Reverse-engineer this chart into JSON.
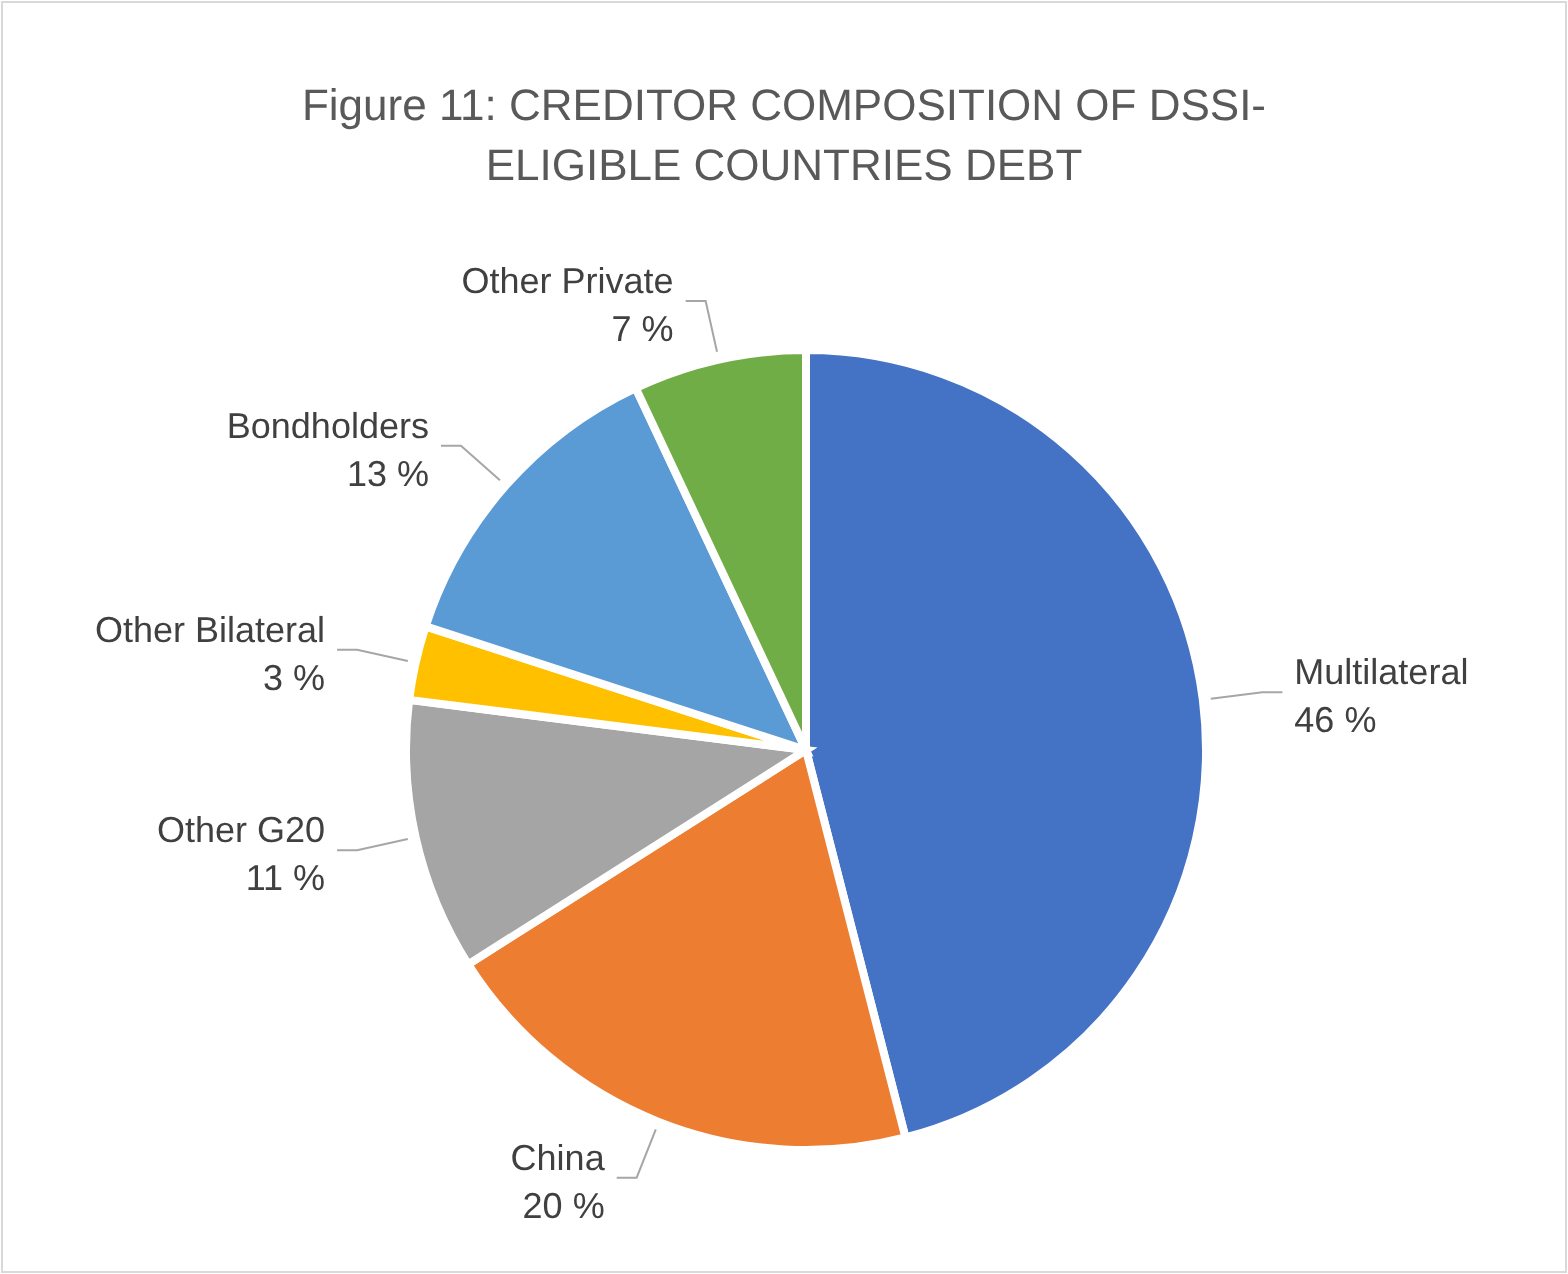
{
  "chart_data": {
    "type": "pie",
    "title": "Figure 11: CREDITOR COMPOSITION OF DSSI-ELIGIBLE COUNTRIES DEBT",
    "categories": [
      "Multilateral",
      "China",
      "Other G20",
      "Other Bilateral",
      "Bondholders",
      "Other Private"
    ],
    "values": [
      46,
      20,
      11,
      3,
      13,
      7
    ],
    "value_labels": [
      "46 %",
      "20 %",
      "11 %",
      "3 %",
      "13 %",
      "7 %"
    ],
    "colors": [
      "#4472c4",
      "#ed7d31",
      "#a5a5a5",
      "#ffc000",
      "#5b9bd5",
      "#70ad47"
    ]
  }
}
